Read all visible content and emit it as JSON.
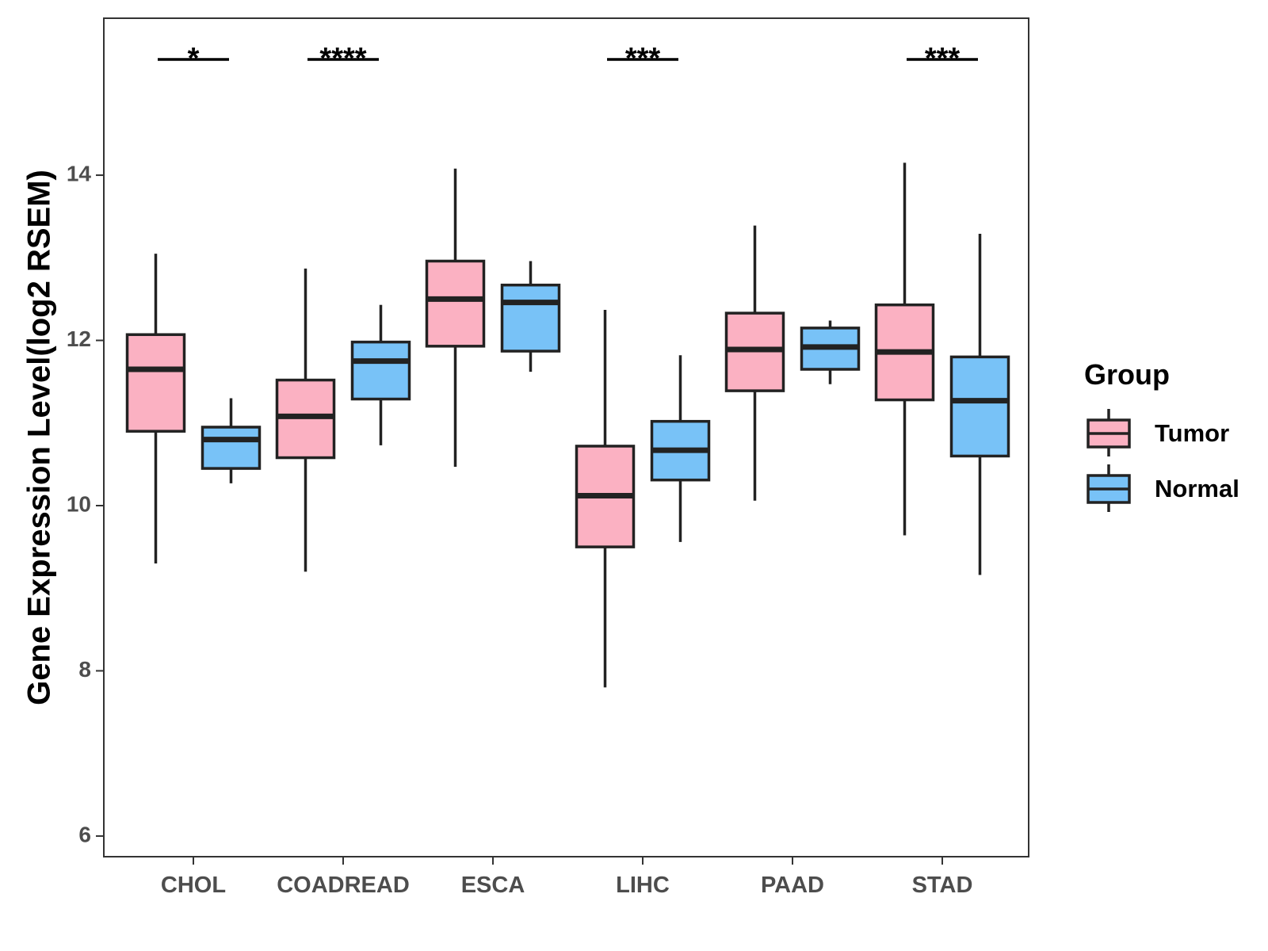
{
  "chart_data": {
    "type": "boxplot",
    "title": "",
    "xlabel": "",
    "ylabel": "Gene Expression Level(log2 RSEM)",
    "ylim": [
      5.75,
      15.9
    ],
    "y_ticks": [
      6,
      8,
      10,
      12,
      14
    ],
    "categories": [
      "CHOL",
      "COADREAD",
      "ESCA",
      "LIHC",
      "PAAD",
      "STAD"
    ],
    "legend": {
      "title": "Group",
      "position": "right"
    },
    "grid": false,
    "series": [
      {
        "name": "Tumor",
        "color": "#FBB1C2",
        "boxes": [
          {
            "whisker_low": 9.3,
            "q1": 10.9,
            "median": 11.65,
            "q3": 12.07,
            "whisker_high": 13.05
          },
          {
            "whisker_low": 9.2,
            "q1": 10.58,
            "median": 11.08,
            "q3": 11.52,
            "whisker_high": 12.87
          },
          {
            "whisker_low": 10.47,
            "q1": 11.93,
            "median": 12.5,
            "q3": 12.96,
            "whisker_high": 14.08
          },
          {
            "whisker_low": 7.8,
            "q1": 9.5,
            "median": 10.12,
            "q3": 10.72,
            "whisker_high": 12.37
          },
          {
            "whisker_low": 10.06,
            "q1": 11.39,
            "median": 11.89,
            "q3": 12.33,
            "whisker_high": 13.39
          },
          {
            "whisker_low": 9.64,
            "q1": 11.28,
            "median": 11.86,
            "q3": 12.43,
            "whisker_high": 14.15
          }
        ]
      },
      {
        "name": "Normal",
        "color": "#78C2F7",
        "boxes": [
          {
            "whisker_low": 10.27,
            "q1": 10.45,
            "median": 10.8,
            "q3": 10.95,
            "whisker_high": 11.3
          },
          {
            "whisker_low": 10.73,
            "q1": 11.29,
            "median": 11.75,
            "q3": 11.98,
            "whisker_high": 12.43
          },
          {
            "whisker_low": 11.62,
            "q1": 11.87,
            "median": 12.46,
            "q3": 12.67,
            "whisker_high": 12.96
          },
          {
            "whisker_low": 9.56,
            "q1": 10.31,
            "median": 10.67,
            "q3": 11.02,
            "whisker_high": 11.82
          },
          {
            "whisker_low": 11.47,
            "q1": 11.65,
            "median": 11.92,
            "q3": 12.15,
            "whisker_high": 12.24
          },
          {
            "whisker_low": 9.16,
            "q1": 10.6,
            "median": 11.27,
            "q3": 11.8,
            "whisker_high": 13.29
          }
        ]
      }
    ],
    "significance": [
      {
        "category": "CHOL",
        "label": "*"
      },
      {
        "category": "COADREAD",
        "label": "****"
      },
      {
        "category": "LIHC",
        "label": "***"
      },
      {
        "category": "STAD",
        "label": "***"
      }
    ]
  }
}
